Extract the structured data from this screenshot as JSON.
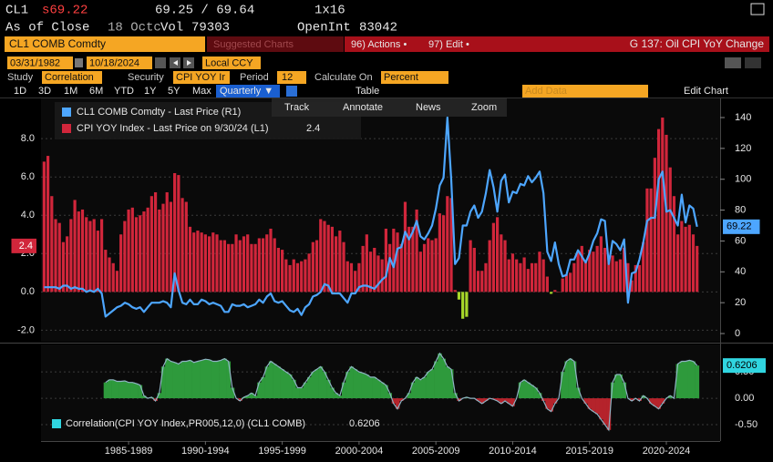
{
  "header": {
    "ticker": "CL1",
    "last": "s69.22",
    "bid_ask": "69.25 / 69.64",
    "size": "1x16",
    "as_of": "As of Close",
    "date": "18 Octc",
    "vol_label": "Vol",
    "vol": 79303,
    "oi_label": "OpenInt",
    "oi": 83042
  },
  "toolbar": {
    "security": "CL1 COMB Comdty",
    "suggested": "Suggested Charts",
    "actions": "96) Actions •",
    "edit": "97) Edit •",
    "chart_title": "G 137: Oil CPI YoY Change",
    "start": "03/31/1982",
    "end": "10/18/2024",
    "currency": "Local CCY"
  },
  "study": {
    "study_label": "Study",
    "study": "Correlation",
    "security_label": "Security",
    "security": "CPI YOY Ir",
    "period_label": "Period",
    "period": 12,
    "calc_label": "Calculate On",
    "calc": "Percent"
  },
  "ranges": {
    "periods": [
      "1D",
      "3D",
      "1M",
      "6M",
      "YTD",
      "1Y",
      "5Y",
      "Max"
    ],
    "frequency": "Quarterly ▼",
    "table": "Table",
    "add_data": "Add Data",
    "edit_chart": "Edit Chart"
  },
  "tools": [
    "Track",
    "Annotate",
    "News",
    "Zoom"
  ],
  "chart_data": [
    {
      "type": "combo",
      "x": [
        1982,
        1982.25,
        1982.5,
        1982.75,
        1983,
        1983.25,
        1983.5,
        1983.75,
        1984,
        1984.25,
        1984.5,
        1984.75,
        1985,
        1985.25,
        1985.5,
        1985.75,
        1986,
        1986.25,
        1986.5,
        1986.75,
        1987,
        1987.25,
        1987.5,
        1987.75,
        1988,
        1988.25,
        1988.5,
        1988.75,
        1989,
        1989.25,
        1989.5,
        1989.75,
        1990,
        1990.25,
        1990.5,
        1990.75,
        1991,
        1991.25,
        1991.5,
        1991.75,
        1992,
        1992.25,
        1992.5,
        1992.75,
        1993,
        1993.25,
        1993.5,
        1993.75,
        1994,
        1994.25,
        1994.5,
        1994.75,
        1995,
        1995.25,
        1995.5,
        1995.75,
        1996,
        1996.25,
        1996.5,
        1996.75,
        1997,
        1997.25,
        1997.5,
        1997.75,
        1998,
        1998.25,
        1998.5,
        1998.75,
        1999,
        1999.25,
        1999.5,
        1999.75,
        2000,
        2000.25,
        2000.5,
        2000.75,
        2001,
        2001.25,
        2001.5,
        2001.75,
        2002,
        2002.25,
        2002.5,
        2002.75,
        2003,
        2003.25,
        2003.5,
        2003.75,
        2004,
        2004.25,
        2004.5,
        2004.75,
        2005,
        2005.25,
        2005.5,
        2005.75,
        2006,
        2006.25,
        2006.5,
        2006.75,
        2007,
        2007.25,
        2007.5,
        2007.75,
        2008,
        2008.25,
        2008.5,
        2008.75,
        2009,
        2009.25,
        2009.5,
        2009.75,
        2010,
        2010.25,
        2010.5,
        2010.75,
        2011,
        2011.25,
        2011.5,
        2011.75,
        2012,
        2012.25,
        2012.5,
        2012.75,
        2013,
        2013.25,
        2013.5,
        2013.75,
        2014,
        2014.25,
        2014.5,
        2014.75,
        2015,
        2015.25,
        2015.5,
        2015.75,
        2016,
        2016.25,
        2016.5,
        2016.75,
        2017,
        2017.25,
        2017.5,
        2017.75,
        2018,
        2018.25,
        2018.5,
        2018.75,
        2019,
        2019.25,
        2019.5,
        2019.75,
        2020,
        2020.25,
        2020.5,
        2020.75,
        2021,
        2021.25,
        2021.5,
        2021.75,
        2022,
        2022.25,
        2022.5,
        2022.75,
        2023,
        2023.25,
        2023.5,
        2023.75,
        2024,
        2024.25,
        2024.5
      ],
      "xlim": [
        1981.8,
        2026.0
      ],
      "ylim": [
        -2.6,
        10.1
      ],
      "yticks": [
        {
          "value": -2,
          "label": "-2.0"
        },
        {
          "value": 0,
          "label": "0.0"
        },
        {
          "value": 2,
          "label": "2.0"
        },
        {
          "value": 4,
          "label": "4.0"
        },
        {
          "value": 6,
          "label": "6.0"
        },
        {
          "value": 8,
          "label": "8.0"
        }
      ],
      "y2lim": [
        -5.3,
        152.4
      ],
      "y2ticks": [
        0,
        20,
        40,
        60,
        80,
        100,
        120,
        140
      ],
      "grid": true,
      "series": [
        {
          "name": "CL1 COMB Comdty - Last Price (R1)",
          "type": "line",
          "axis": "y2",
          "color": "#4da6ff",
          "values": [
            30,
            30,
            30,
            30,
            29,
            31,
            31,
            29,
            30,
            29,
            29,
            27,
            28,
            27,
            29,
            26,
            11,
            13,
            15,
            17,
            18,
            20,
            19,
            17,
            16,
            17,
            14,
            17,
            20,
            20,
            20,
            21,
            20,
            17,
            39,
            28,
            20,
            19,
            22,
            19,
            19,
            22,
            21,
            19,
            20,
            19,
            18,
            14,
            14,
            19,
            18,
            18,
            19,
            17,
            18,
            19,
            22,
            20,
            24,
            26,
            21,
            20,
            21,
            18,
            15,
            14,
            16,
            12,
            17,
            19,
            24,
            25,
            27,
            32,
            31,
            26,
            26,
            26,
            23,
            20,
            26,
            26,
            30,
            31,
            31,
            30,
            29,
            32,
            35,
            37,
            49,
            43,
            55,
            56,
            66,
            61,
            66,
            73,
            63,
            61,
            65,
            70,
            81,
            96,
            101,
            140,
            100,
            45,
            49,
            70,
            70,
            79,
            83,
            75,
            79,
            91,
            106,
            95,
            79,
            99,
            103,
            85,
            92,
            91,
            97,
            96,
            102,
            98,
            101,
            105,
            91,
            53,
            47,
            59,
            45,
            37,
            38,
            48,
            48,
            54,
            50,
            46,
            52,
            60,
            65,
            74,
            73,
            45,
            60,
            58,
            54,
            61,
            20,
            39,
            40,
            48,
            59,
            73,
            75,
            75,
            100,
            105,
            79,
            80,
            75,
            70,
            90,
            72,
            83,
            81,
            69.22
          ]
        },
        {
          "name": "CPI YOY Index - Last Price on 9/30/24 (L1)",
          "type": "bar",
          "axis": "y",
          "color": "#d1263b",
          "negative_color": "#a6d62a",
          "values": [
            6.8,
            7.1,
            5.0,
            3.8,
            3.6,
            2.6,
            2.9,
            3.8,
            4.8,
            4.2,
            4.3,
            3.9,
            3.7,
            3.8,
            3.2,
            3.8,
            2.2,
            1.8,
            1.5,
            1.1,
            3.0,
            3.7,
            4.3,
            4.4,
            3.9,
            4.0,
            4.2,
            4.4,
            5.0,
            5.2,
            4.3,
            4.6,
            5.2,
            4.7,
            6.2,
            6.1,
            4.9,
            4.7,
            3.4,
            3.1,
            3.2,
            3.1,
            3.0,
            2.9,
            3.1,
            3.0,
            2.7,
            2.7,
            2.5,
            2.5,
            3.0,
            2.7,
            2.9,
            3.0,
            2.5,
            2.5,
            2.8,
            2.8,
            3.0,
            3.3,
            2.8,
            2.3,
            2.2,
            1.7,
            1.4,
            1.7,
            1.5,
            1.6,
            1.7,
            2.0,
            2.6,
            2.7,
            3.8,
            3.7,
            3.5,
            3.4,
            2.9,
            3.2,
            2.6,
            1.6,
            1.5,
            1.1,
            1.5,
            2.4,
            3.0,
            2.1,
            2.3,
            1.9,
            1.7,
            3.3,
            2.5,
            3.3,
            3.1,
            2.5,
            4.7,
            3.4,
            3.4,
            4.3,
            2.1,
            2.5,
            2.8,
            2.7,
            2.8,
            4.1,
            4.0,
            5.0,
            4.9,
            0.1,
            -0.4,
            -1.4,
            -1.3,
            2.7,
            2.3,
            1.1,
            1.1,
            1.5,
            2.7,
            3.6,
            3.9,
            3.0,
            2.7,
            1.7,
            2.0,
            1.7,
            1.5,
            1.8,
            1.2,
            1.5,
            1.5,
            2.1,
            1.7,
            0.8,
            -0.1,
            0.1,
            0.0,
            0.7,
            0.9,
            1.0,
            1.5,
            2.1,
            2.4,
            1.6,
            2.2,
            2.1,
            2.4,
            2.9,
            2.3,
            1.9,
            1.9,
            1.6,
            1.7,
            2.3,
            1.5,
            0.6,
            1.4,
            1.4,
            2.6,
            5.4,
            5.4,
            7.0,
            8.5,
            9.1,
            8.2,
            6.5,
            5.0,
            3.0,
            3.7,
            3.4,
            3.5,
            3.0,
            2.4
          ]
        }
      ]
    },
    {
      "type": "area",
      "x": [
        1986,
        1986.25,
        1986.5,
        1986.75,
        1987,
        1987.25,
        1987.5,
        1987.75,
        1988,
        1988.25,
        1988.5,
        1988.75,
        1989,
        1989.25,
        1989.5,
        1989.75,
        1990,
        1990.25,
        1990.5,
        1990.75,
        1991,
        1991.25,
        1991.5,
        1991.75,
        1992,
        1992.25,
        1992.5,
        1992.75,
        1993,
        1993.25,
        1993.5,
        1993.75,
        1994,
        1994.25,
        1994.5,
        1994.75,
        1995,
        1995.25,
        1995.5,
        1995.75,
        1996,
        1996.25,
        1996.5,
        1996.75,
        1997,
        1997.25,
        1997.5,
        1997.75,
        1998,
        1998.25,
        1998.5,
        1998.75,
        1999,
        1999.25,
        1999.5,
        1999.75,
        2000,
        2000.25,
        2000.5,
        2000.75,
        2001,
        2001.25,
        2001.5,
        2001.75,
        2002,
        2002.25,
        2002.5,
        2002.75,
        2003,
        2003.25,
        2003.5,
        2003.75,
        2004,
        2004.25,
        2004.5,
        2004.75,
        2005,
        2005.25,
        2005.5,
        2005.75,
        2006,
        2006.25,
        2006.5,
        2006.75,
        2007,
        2007.25,
        2007.5,
        2007.75,
        2008,
        2008.25,
        2008.5,
        2008.75,
        2009,
        2009.25,
        2009.5,
        2009.75,
        2010,
        2010.25,
        2010.5,
        2010.75,
        2011,
        2011.25,
        2011.5,
        2011.75,
        2012,
        2012.25,
        2012.5,
        2012.75,
        2013,
        2013.25,
        2013.5,
        2013.75,
        2014,
        2014.25,
        2014.5,
        2014.75,
        2015,
        2015.25,
        2015.5,
        2015.75,
        2016,
        2016.25,
        2016.5,
        2016.75,
        2017,
        2017.25,
        2017.5,
        2017.75,
        2018,
        2018.25,
        2018.5,
        2018.75,
        2019,
        2019.25,
        2019.5,
        2019.75,
        2020,
        2020.25,
        2020.5,
        2020.75,
        2021,
        2021.25,
        2021.5,
        2021.75,
        2022,
        2022.25,
        2022.5,
        2022.75,
        2023,
        2023.25,
        2023.5,
        2023.75,
        2024,
        2024.25,
        2024.5
      ],
      "xlim": [
        1981.8,
        2026.0
      ],
      "xticks": [
        {
          "value": 1987.5,
          "label": "1985-1989"
        },
        {
          "value": 1992.5,
          "label": "1990-1994"
        },
        {
          "value": 1997.5,
          "label": "1995-1999"
        },
        {
          "value": 2002.5,
          "label": "2000-2004"
        },
        {
          "value": 2007.5,
          "label": "2005-2009"
        },
        {
          "value": 2012.5,
          "label": "2010-2014"
        },
        {
          "value": 2017.5,
          "label": "2015-2019"
        },
        {
          "value": 2022.5,
          "label": "2020-2024"
        }
      ],
      "ylim": [
        -0.81,
        1.02
      ],
      "yticks": [
        {
          "value": -0.5,
          "label": "-0.50"
        },
        {
          "value": 0,
          "label": "0.00"
        },
        {
          "value": 0.5,
          "label": "0.50"
        }
      ],
      "series": [
        {
          "name": "Correlation(CPI YOY Index,PR005,12,0) (CL1 COMB)",
          "color": "#2e9a3c",
          "negative_color": "#b5232b",
          "line_color": "#8fb4c4",
          "values": [
            0.3,
            0.35,
            0.35,
            0.32,
            0.32,
            0.33,
            0.3,
            0.3,
            0.28,
            0.25,
            0.05,
            0.0,
            0.02,
            -0.05,
            0.1,
            0.6,
            0.75,
            0.7,
            0.68,
            0.65,
            0.7,
            0.7,
            0.72,
            0.68,
            0.7,
            0.72,
            0.74,
            0.73,
            0.7,
            0.7,
            0.72,
            0.75,
            0.7,
            0.2,
            0.0,
            -0.05,
            0.02,
            0.05,
            0.1,
            0.05,
            0.3,
            0.4,
            0.6,
            0.7,
            0.65,
            0.6,
            0.55,
            0.5,
            0.45,
            0.35,
            0.2,
            0.2,
            0.3,
            0.4,
            0.5,
            0.55,
            0.6,
            0.5,
            0.35,
            0.2,
            0.1,
            0.05,
            0.3,
            0.5,
            0.6,
            0.55,
            0.5,
            0.48,
            0.45,
            0.4,
            0.4,
            0.35,
            0.3,
            0.25,
            0.1,
            -0.1,
            -0.2,
            -0.05,
            0.0,
            0.1,
            0.3,
            0.4,
            0.35,
            0.4,
            0.5,
            0.55,
            0.7,
            0.85,
            0.75,
            0.6,
            0.55,
            0.1,
            -0.05,
            0.0,
            0.02,
            0.0,
            0.0,
            -0.05,
            -0.1,
            -0.05,
            0.0,
            -0.02,
            -0.05,
            -0.1,
            -0.05,
            -0.1,
            -0.15,
            0.0,
            0.3,
            0.35,
            0.3,
            0.25,
            0.2,
            0.1,
            -0.05,
            -0.2,
            -0.25,
            -0.1,
            0.0,
            0.5,
            0.7,
            0.75,
            0.7,
            0.2,
            0.0,
            -0.1,
            -0.2,
            -0.25,
            -0.3,
            -0.4,
            -0.5,
            -0.6,
            0.3,
            0.45,
            0.45,
            0.3,
            0.0,
            -0.05,
            0.0,
            -0.05,
            0.05,
            0.0,
            -0.1,
            -0.15,
            -0.2,
            -0.1,
            0.0,
            0.05,
            0.0,
            0.65,
            0.7,
            0.7,
            0.72,
            0.7,
            0.6206
          ]
        }
      ]
    }
  ]
}
